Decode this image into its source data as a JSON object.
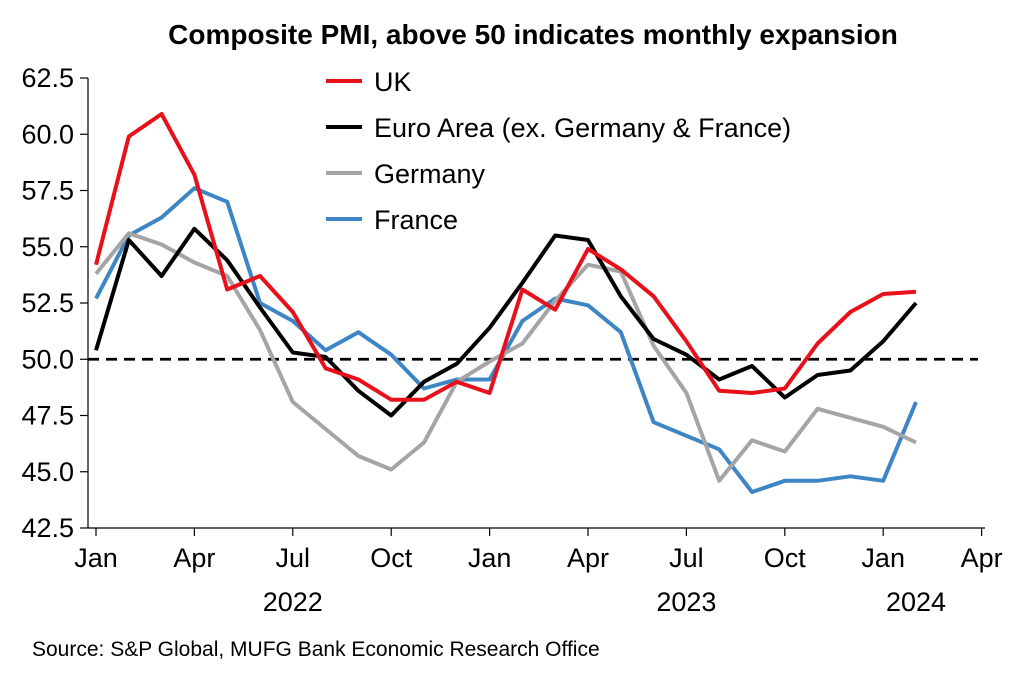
{
  "chart_data": {
    "type": "line",
    "title": "Composite PMI, above 50 indicates monthly expansion",
    "source": "Source: S&P Global, MUFG Bank Economic Research Office",
    "xlabel": "",
    "ylabel": "",
    "ylim": [
      42.5,
      62.5
    ],
    "yticks": [
      {
        "value": 62.5,
        "label": "62.5"
      },
      {
        "value": 60.0,
        "label": "60.0"
      },
      {
        "value": 57.5,
        "label": "57.5"
      },
      {
        "value": 55.0,
        "label": "55.0"
      },
      {
        "value": 52.5,
        "label": "52.5"
      },
      {
        "value": 50.0,
        "label": "50.0"
      },
      {
        "value": 47.5,
        "label": "47.5"
      },
      {
        "value": 45.0,
        "label": "45.0"
      },
      {
        "value": 42.5,
        "label": "42.5"
      }
    ],
    "xticks": [
      {
        "date": "2022-01",
        "label": "Jan"
      },
      {
        "date": "2022-04",
        "label": "Apr"
      },
      {
        "date": "2022-07",
        "label": "Jul"
      },
      {
        "date": "2022-10",
        "label": "Oct"
      },
      {
        "date": "2023-01",
        "label": "Jan"
      },
      {
        "date": "2023-04",
        "label": "Apr"
      },
      {
        "date": "2023-07",
        "label": "Jul"
      },
      {
        "date": "2023-10",
        "label": "Oct"
      },
      {
        "date": "2024-01",
        "label": "Jan"
      },
      {
        "date": "2024-04",
        "label": "Apr"
      }
    ],
    "year_labels": [
      {
        "date": "2022-07",
        "label": "2022"
      },
      {
        "date": "2023-07",
        "label": "2023"
      },
      {
        "date": "2024-02",
        "label": "2024"
      }
    ],
    "reference_line": {
      "y": 50.0,
      "style": "dashed",
      "color": "#000000"
    },
    "legend_position": "top-center",
    "x": [
      "2022-01",
      "2022-02",
      "2022-03",
      "2022-04",
      "2022-05",
      "2022-06",
      "2022-07",
      "2022-08",
      "2022-09",
      "2022-10",
      "2022-11",
      "2022-12",
      "2023-01",
      "2023-02",
      "2023-03",
      "2023-04",
      "2023-05",
      "2023-06",
      "2023-07",
      "2023-08",
      "2023-09",
      "2023-10",
      "2023-11",
      "2023-12",
      "2024-01",
      "2024-02"
    ],
    "series": [
      {
        "name": "UK",
        "color": "#e8101a",
        "values": [
          54.2,
          59.9,
          60.9,
          58.2,
          53.1,
          53.7,
          52.1,
          49.6,
          49.1,
          48.2,
          48.2,
          49.0,
          48.5,
          53.1,
          52.2,
          54.9,
          54.0,
          52.8,
          50.8,
          48.6,
          48.5,
          48.7,
          50.7,
          52.1,
          52.9,
          53.0
        ]
      },
      {
        "name": "Euro Area (ex. Germany & France)",
        "color": "#000000",
        "values": [
          50.4,
          55.3,
          53.7,
          55.8,
          54.4,
          52.3,
          50.3,
          50.1,
          48.6,
          47.5,
          49.0,
          49.8,
          51.4,
          53.4,
          55.5,
          55.3,
          52.8,
          50.9,
          50.2,
          49.1,
          49.7,
          48.3,
          49.3,
          49.5,
          50.8,
          52.5
        ]
      },
      {
        "name": "Germany",
        "color": "#a5a5a5",
        "values": [
          53.8,
          55.6,
          55.1,
          54.3,
          53.7,
          51.3,
          48.1,
          46.9,
          45.7,
          45.1,
          46.3,
          49.0,
          49.9,
          50.7,
          52.6,
          54.2,
          53.9,
          50.6,
          48.5,
          44.6,
          46.4,
          45.9,
          47.8,
          47.4,
          47.0,
          46.3
        ]
      },
      {
        "name": "France",
        "color": "#3d86c6",
        "values": [
          52.7,
          55.5,
          56.3,
          57.6,
          57.0,
          52.5,
          51.7,
          50.4,
          51.2,
          50.2,
          48.7,
          49.1,
          49.1,
          51.7,
          52.7,
          52.4,
          51.2,
          47.2,
          46.6,
          46.0,
          44.1,
          44.6,
          44.6,
          44.8,
          44.6,
          48.1
        ]
      }
    ]
  }
}
